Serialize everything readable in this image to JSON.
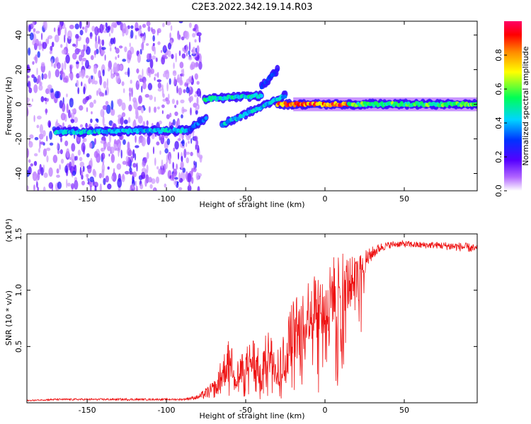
{
  "title": "C2E3.2022.342.19.14.R03",
  "chart_data": [
    {
      "type": "heatmap",
      "name": "spectrogram",
      "xlabel": "Height of straight line (km)",
      "ylabel": "Frequency (Hz)",
      "xlim": [
        -188,
        96
      ],
      "ylim": [
        -50,
        48
      ],
      "xticks": [
        -150,
        -100,
        -50,
        0,
        50
      ],
      "xtick_labels": [
        "-150",
        "-100",
        "-50",
        "0",
        "50"
      ],
      "yticks": [
        -40,
        -20,
        0,
        20,
        40
      ],
      "ytick_labels": [
        "-40",
        "-20",
        "0",
        "20",
        "40"
      ],
      "colorbar": {
        "label": "Normalized spectral amplitude",
        "range": [
          0,
          1
        ],
        "ticks": [
          0.0,
          0.2,
          0.4,
          0.6,
          0.8
        ],
        "tick_labels": [
          "0.0",
          "0.2",
          "0.4",
          "0.6",
          "0.8"
        ]
      },
      "ridge_segments": [
        {
          "x": [
            -170,
            -85
          ],
          "freq": [
            -16,
            -15
          ],
          "amplitude": 0.45
        },
        {
          "x": [
            -85,
            -75
          ],
          "freq": [
            -14,
            -8
          ],
          "amplitude": 0.35
        },
        {
          "x": [
            -76,
            -40
          ],
          "freq": [
            3,
            5
          ],
          "amplitude": 0.5
        },
        {
          "x": [
            -65,
            -25
          ],
          "freq": [
            -12,
            5
          ],
          "amplitude": 0.45
        },
        {
          "x": [
            -40,
            -30
          ],
          "freq": [
            10,
            20
          ],
          "amplitude": 0.3
        },
        {
          "x": [
            -30,
            15
          ],
          "freq": [
            0,
            0
          ],
          "amplitude": 0.9
        },
        {
          "x": [
            15,
            96
          ],
          "freq": [
            0,
            0
          ],
          "amplitude": 0.6
        }
      ]
    },
    {
      "type": "line",
      "name": "snr",
      "xlabel": "Height of straight line (km)",
      "ylabel": "SNR (10 * v/v)",
      "multiplier_label": "(x10⁴)",
      "xlim": [
        -188,
        96
      ],
      "ylim": [
        0,
        1.5
      ],
      "xticks": [
        -150,
        -100,
        -50,
        0,
        50
      ],
      "xtick_labels": [
        "-150",
        "-100",
        "-50",
        "0",
        "50"
      ],
      "yticks": [
        0.5,
        1.0,
        1.5
      ],
      "ytick_labels": [
        "0.5",
        "1.0",
        "1.5"
      ],
      "color": "#ee1111",
      "series": [
        {
          "name": "SNR",
          "x": [
            -188,
            -170,
            -150,
            -130,
            -110,
            -90,
            -80,
            -70,
            -65,
            -60,
            -55,
            -50,
            -45,
            -40,
            -35,
            -30,
            -25,
            -20,
            -15,
            -10,
            -5,
            0,
            5,
            10,
            15,
            20,
            25,
            30,
            35,
            40,
            45,
            50,
            60,
            70,
            80,
            90,
            96
          ],
          "values": [
            0.02,
            0.03,
            0.03,
            0.03,
            0.03,
            0.03,
            0.05,
            0.12,
            0.25,
            0.4,
            0.22,
            0.3,
            0.4,
            0.25,
            0.55,
            0.3,
            0.4,
            0.7,
            0.6,
            0.85,
            0.9,
            0.8,
            1.0,
            1.1,
            1.05,
            1.15,
            1.25,
            1.33,
            1.38,
            1.4,
            1.41,
            1.41,
            1.4,
            1.4,
            1.39,
            1.38,
            1.36
          ],
          "noise": [
            0.005,
            0.008,
            0.008,
            0.01,
            0.008,
            0.008,
            0.02,
            0.08,
            0.15,
            0.2,
            0.18,
            0.2,
            0.2,
            0.15,
            0.25,
            0.2,
            0.25,
            0.3,
            0.3,
            0.3,
            0.3,
            0.3,
            0.3,
            0.3,
            0.25,
            0.15,
            0.1,
            0.06,
            0.04,
            0.03,
            0.03,
            0.03,
            0.03,
            0.03,
            0.04,
            0.04,
            0.04
          ]
        }
      ]
    }
  ]
}
